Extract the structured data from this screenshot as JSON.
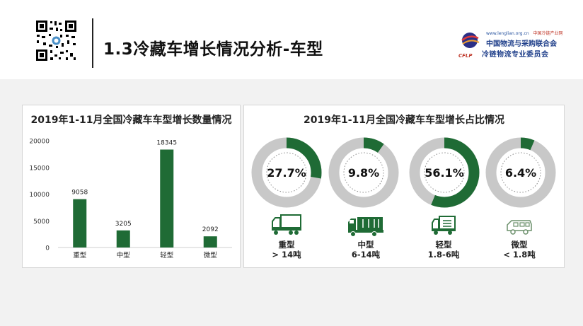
{
  "header": {
    "title": "1.3冷藏车增长情况分析-车型",
    "logo": {
      "url": "www.lenglian.org.cn",
      "tag": "中国冷链产业网",
      "name_line1": "中国物流与采购联合会",
      "name_line2": "冷链物流专业委员会",
      "abbr": "CFLP"
    }
  },
  "colors": {
    "primary": "#1f6b35",
    "ring_bg": "#c8c8c8",
    "accent_blue": "#1f3f8a"
  },
  "left_panel": {
    "title": "2019年1-11月全国冷藏车车型增长数量情况"
  },
  "right_panel": {
    "title": "2019年1-11月全国冷藏车车型增长占比情况"
  },
  "chart_data": [
    {
      "type": "bar",
      "title": "2019年1-11月全国冷藏车车型增长数量情况",
      "categories": [
        "重型",
        "中型",
        "轻型",
        "微型"
      ],
      "values": [
        9058,
        3205,
        18345,
        2092
      ],
      "ylim": [
        0,
        20000
      ],
      "yticks": [
        0,
        5000,
        10000,
        15000,
        20000
      ],
      "grid": false
    },
    {
      "type": "pie",
      "title": "2019年1-11月全国冷藏车车型增长占比情况",
      "categories": [
        "重型",
        "中型",
        "轻型",
        "微型"
      ],
      "values": [
        27.7,
        9.8,
        56.1,
        6.4
      ],
      "labels": [
        "27.7%",
        "9.8%",
        "56.1%",
        "6.4%"
      ]
    }
  ],
  "truck_types": [
    {
      "icon": "heavy-truck-icon",
      "name": "重型",
      "range": "> 14吨"
    },
    {
      "icon": "medium-truck-icon",
      "name": "中型",
      "range": "6-14吨"
    },
    {
      "icon": "light-truck-icon",
      "name": "轻型",
      "range": "1.8-6吨"
    },
    {
      "icon": "mini-van-icon",
      "name": "微型",
      "range": "< 1.8吨"
    }
  ]
}
